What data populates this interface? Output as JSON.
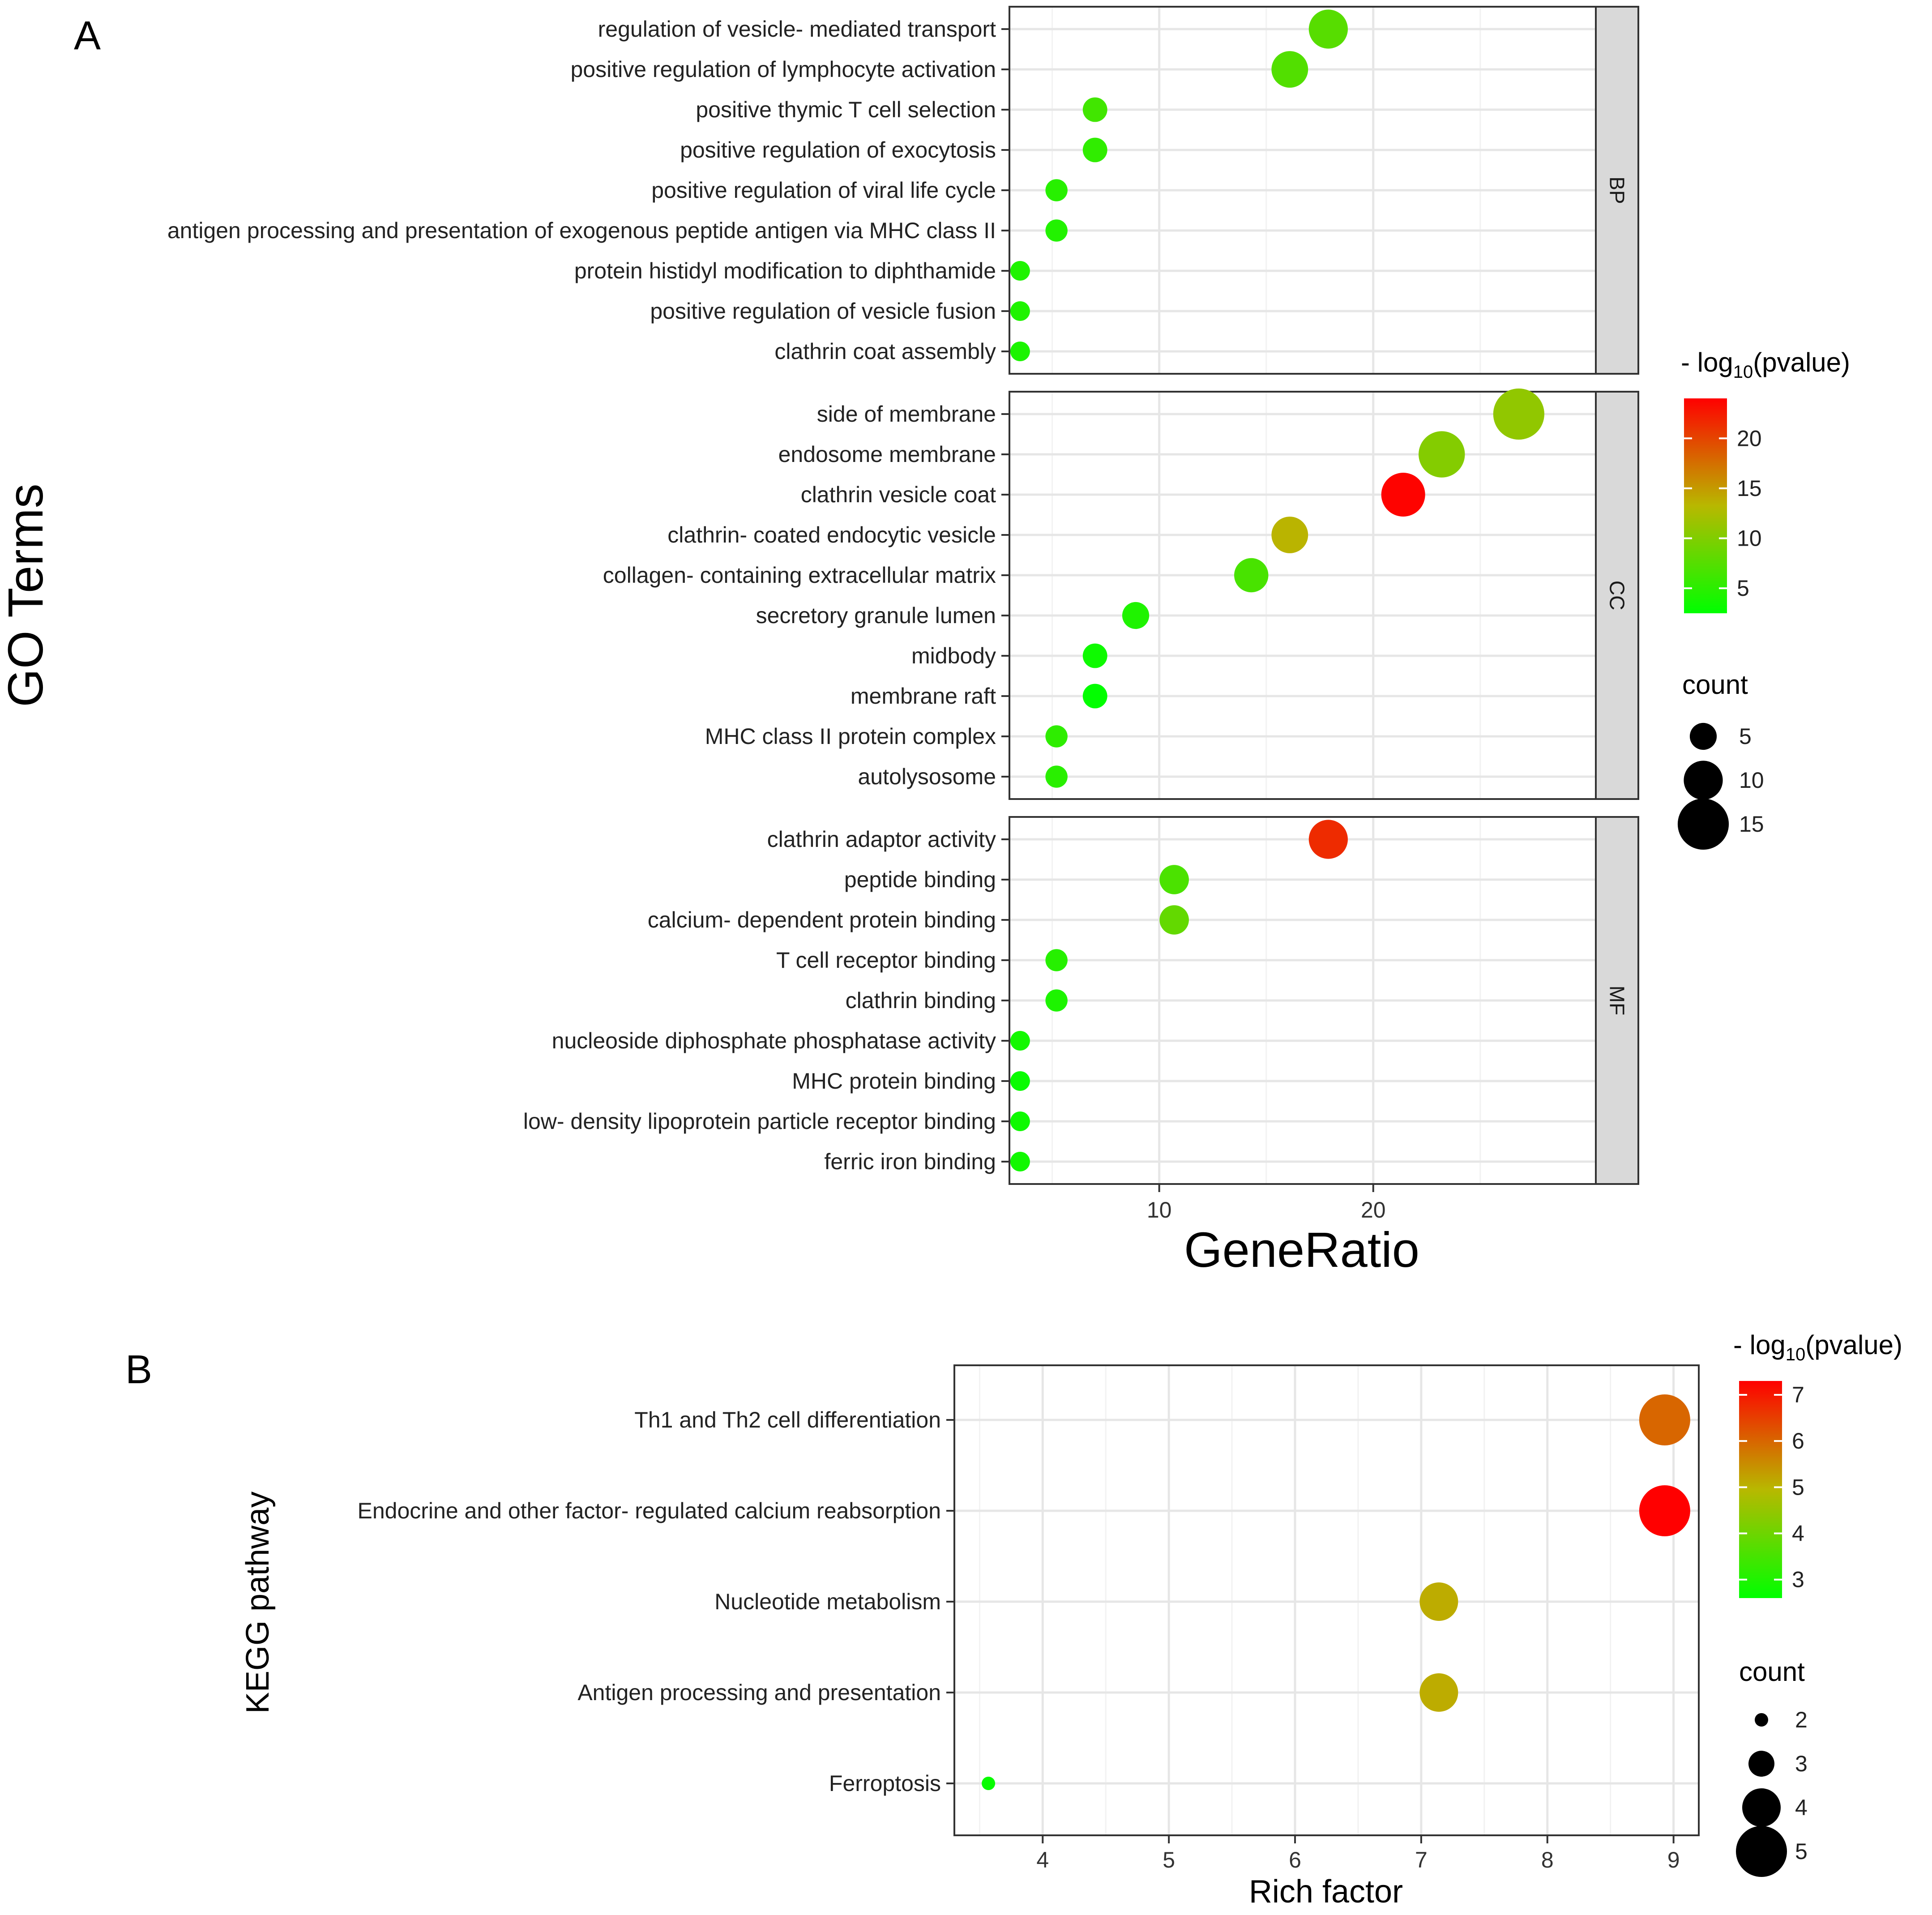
{
  "chart_data": [
    {
      "panel_label": "A",
      "type": "scatter",
      "xlabel": "GeneRatio",
      "ylabel": "GO Terms",
      "x_ticks": [
        10,
        20
      ],
      "xlim": [
        3.0,
        30.4
      ],
      "color_legend": {
        "title_prefix": "- log",
        "title_sub": "10",
        "title_suffix": "(pvalue)",
        "ticks": [
          5,
          10,
          15,
          20
        ],
        "range": [
          2.5,
          24
        ]
      },
      "size_legend": {
        "title": "count",
        "values": [
          5,
          10,
          15
        ]
      },
      "facets": [
        {
          "name": "BP",
          "terms": [
            {
              "label": "regulation of vesicle- mediated transport",
              "x": 17.9,
              "color": 7.6,
              "count": 10
            },
            {
              "label": "positive regulation of lymphocyte activation",
              "x": 16.1,
              "color": 7.3,
              "count": 9
            },
            {
              "label": "positive thymic T cell selection",
              "x": 7.0,
              "color": 6.3,
              "count": 4
            },
            {
              "label": "positive regulation of exocytosis",
              "x": 7.0,
              "color": 5.3,
              "count": 4
            },
            {
              "label": "positive regulation of viral life cycle",
              "x": 5.2,
              "color": 4.8,
              "count": 3
            },
            {
              "label": "antigen processing and presentation of exogenous peptide antigen via MHC class II",
              "x": 5.2,
              "color": 4.5,
              "count": 3
            },
            {
              "label": "protein histidyl modification to diphthamide",
              "x": 3.5,
              "color": 4.3,
              "count": 2
            },
            {
              "label": "positive regulation of vesicle fusion",
              "x": 3.5,
              "color": 4.3,
              "count": 2
            },
            {
              "label": "clathrin coat assembly",
              "x": 3.5,
              "color": 4.1,
              "count": 2
            }
          ]
        },
        {
          "name": "CC",
          "terms": [
            {
              "label": "side of membrane",
              "x": 26.8,
              "color": 11.0,
              "count": 15
            },
            {
              "label": "endosome membrane",
              "x": 23.2,
              "color": 10.2,
              "count": 13
            },
            {
              "label": "clathrin vesicle coat",
              "x": 21.4,
              "color": 23.8,
              "count": 12
            },
            {
              "label": "clathrin- coated endocytic vesicle",
              "x": 16.1,
              "color": 13.5,
              "count": 9
            },
            {
              "label": "collagen- containing extracellular matrix",
              "x": 14.3,
              "color": 6.7,
              "count": 8
            },
            {
              "label": "secretory granule lumen",
              "x": 8.9,
              "color": 4.3,
              "count": 5
            },
            {
              "label": "midbody",
              "x": 7.0,
              "color": 3.3,
              "count": 4
            },
            {
              "label": "membrane raft",
              "x": 7.0,
              "color": 2.6,
              "count": 4
            },
            {
              "label": "MHC class II protein complex",
              "x": 5.2,
              "color": 5.2,
              "count": 3
            },
            {
              "label": "autolysosome",
              "x": 5.2,
              "color": 4.9,
              "count": 3
            }
          ]
        },
        {
          "name": "MF",
          "terms": [
            {
              "label": "clathrin adaptor activity",
              "x": 17.9,
              "color": 21.5,
              "count": 10
            },
            {
              "label": "peptide binding",
              "x": 10.7,
              "color": 6.9,
              "count": 6
            },
            {
              "label": "calcium- dependent protein binding",
              "x": 10.7,
              "color": 8.3,
              "count": 6
            },
            {
              "label": "T cell receptor binding",
              "x": 5.2,
              "color": 4.7,
              "count": 3
            },
            {
              "label": "clathrin binding",
              "x": 5.2,
              "color": 4.2,
              "count": 3
            },
            {
              "label": "nucleoside diphosphate phosphatase activity",
              "x": 3.5,
              "color": 3.6,
              "count": 2
            },
            {
              "label": "MHC protein binding",
              "x": 3.5,
              "color": 3.0,
              "count": 2
            },
            {
              "label": "low- density lipoprotein particle receptor binding",
              "x": 3.5,
              "color": 3.3,
              "count": 2
            },
            {
              "label": "ferric iron binding",
              "x": 3.5,
              "color": 3.5,
              "count": 2
            }
          ]
        }
      ]
    },
    {
      "panel_label": "B",
      "type": "scatter",
      "xlabel": "Rich factor",
      "ylabel": "KEGG pathway",
      "x_ticks": [
        4,
        5,
        6,
        7,
        8,
        9
      ],
      "xlim": [
        3.3,
        9.2
      ],
      "color_legend": {
        "title_prefix": "- log",
        "title_sub": "10",
        "title_suffix": "(pvalue)",
        "ticks": [
          3,
          4,
          5,
          6,
          7
        ],
        "range": [
          2.6,
          7.3
        ]
      },
      "size_legend": {
        "title": "count",
        "values": [
          2,
          3,
          4,
          5
        ]
      },
      "terms": [
        {
          "label": "Th1 and Th2 cell differentiation",
          "x": 8.93,
          "color": 6.0,
          "count": 5
        },
        {
          "label": "Endocrine and other factor- regulated calcium reabsorption",
          "x": 8.93,
          "color": 7.3,
          "count": 5
        },
        {
          "label": "Nucleotide metabolism",
          "x": 7.14,
          "color": 5.1,
          "count": 4
        },
        {
          "label": "Antigen processing and presentation",
          "x": 7.14,
          "color": 5.1,
          "count": 4
        },
        {
          "label": "Ferroptosis",
          "x": 3.57,
          "color": 2.7,
          "count": 2
        }
      ]
    }
  ]
}
